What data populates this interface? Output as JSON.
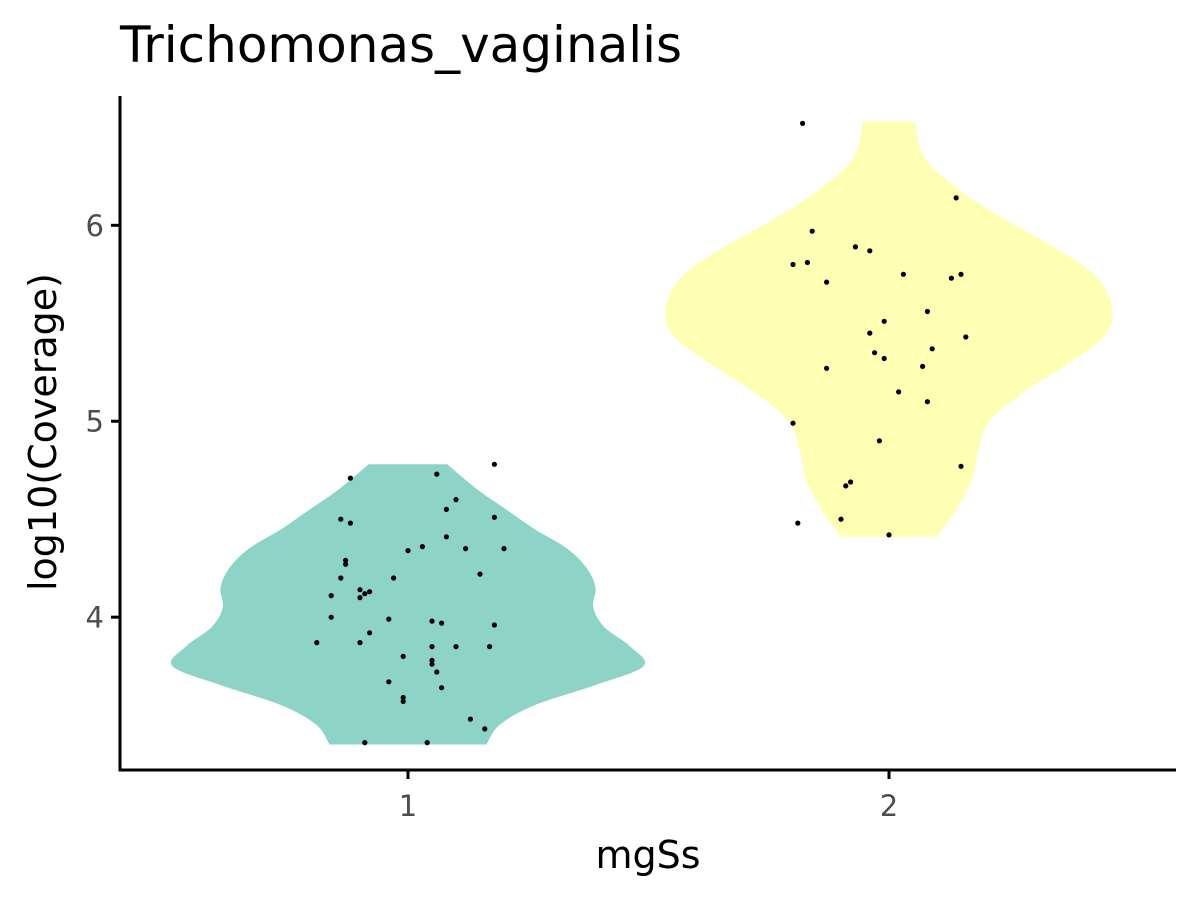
{
  "chart_data": {
    "type": "violin",
    "title": "Trichomonas_vaginalis",
    "xlabel": "mgSs",
    "ylabel": "log10(Coverage)",
    "categories": [
      "1",
      "2"
    ],
    "yticks": [
      "4",
      "5",
      "6"
    ],
    "ylim": [
      3.22,
      6.66
    ],
    "grid": false,
    "legend": "none",
    "series": [
      {
        "category": "1",
        "color": "#8dd3c7",
        "density": [
          [
            3.35,
            0.36
          ],
          [
            3.45,
            0.42
          ],
          [
            3.55,
            0.58
          ],
          [
            3.65,
            0.85
          ],
          [
            3.75,
            1.08
          ],
          [
            3.85,
            1.02
          ],
          [
            3.95,
            0.9
          ],
          [
            4.05,
            0.85
          ],
          [
            4.15,
            0.86
          ],
          [
            4.25,
            0.82
          ],
          [
            4.35,
            0.73
          ],
          [
            4.45,
            0.58
          ],
          [
            4.55,
            0.45
          ],
          [
            4.65,
            0.32
          ],
          [
            4.78,
            0.18
          ]
        ],
        "points": [
          [
            -0.12,
            4.71
          ],
          [
            0.06,
            4.73
          ],
          [
            0.18,
            4.78
          ],
          [
            0.1,
            4.6
          ],
          [
            0.08,
            4.55
          ],
          [
            -0.14,
            4.5
          ],
          [
            -0.12,
            4.48
          ],
          [
            0.18,
            4.51
          ],
          [
            0.08,
            4.41
          ],
          [
            0.12,
            4.35
          ],
          [
            0.2,
            4.35
          ],
          [
            0.03,
            4.36
          ],
          [
            0.0,
            4.34
          ],
          [
            -0.13,
            4.29
          ],
          [
            -0.13,
            4.27
          ],
          [
            0.15,
            4.22
          ],
          [
            -0.03,
            4.2
          ],
          [
            -0.14,
            4.2
          ],
          [
            -0.1,
            4.14
          ],
          [
            -0.09,
            4.12
          ],
          [
            -0.08,
            4.13
          ],
          [
            -0.16,
            4.11
          ],
          [
            -0.1,
            4.1
          ],
          [
            -0.04,
            3.99
          ],
          [
            -0.16,
            4.0
          ],
          [
            0.05,
            3.98
          ],
          [
            0.07,
            3.97
          ],
          [
            0.18,
            3.96
          ],
          [
            -0.08,
            3.92
          ],
          [
            -0.19,
            3.87
          ],
          [
            -0.1,
            3.87
          ],
          [
            0.05,
            3.85
          ],
          [
            0.1,
            3.85
          ],
          [
            0.17,
            3.85
          ],
          [
            -0.01,
            3.8
          ],
          [
            0.05,
            3.78
          ],
          [
            0.05,
            3.76
          ],
          [
            0.06,
            3.72
          ],
          [
            -0.04,
            3.67
          ],
          [
            0.07,
            3.64
          ],
          [
            -0.01,
            3.59
          ],
          [
            -0.01,
            3.57
          ],
          [
            0.13,
            3.48
          ],
          [
            0.16,
            3.43
          ],
          [
            -0.09,
            3.36
          ],
          [
            0.04,
            3.36
          ]
        ]
      },
      {
        "category": "2",
        "color": "#ffffb3",
        "density": [
          [
            4.41,
            0.22
          ],
          [
            4.55,
            0.31
          ],
          [
            4.7,
            0.38
          ],
          [
            4.85,
            0.41
          ],
          [
            5.0,
            0.46
          ],
          [
            5.15,
            0.62
          ],
          [
            5.3,
            0.83
          ],
          [
            5.45,
            1.0
          ],
          [
            5.6,
            1.02
          ],
          [
            5.75,
            0.94
          ],
          [
            5.9,
            0.74
          ],
          [
            6.05,
            0.5
          ],
          [
            6.2,
            0.3
          ],
          [
            6.35,
            0.16
          ],
          [
            6.53,
            0.12
          ]
        ],
        "points": [
          [
            -0.18,
            6.52
          ],
          [
            0.14,
            6.14
          ],
          [
            -0.16,
            5.97
          ],
          [
            -0.07,
            5.89
          ],
          [
            -0.04,
            5.87
          ],
          [
            -0.2,
            5.8
          ],
          [
            -0.17,
            5.81
          ],
          [
            -0.13,
            5.71
          ],
          [
            0.03,
            5.75
          ],
          [
            0.15,
            5.75
          ],
          [
            0.13,
            5.73
          ],
          [
            0.08,
            5.56
          ],
          [
            -0.01,
            5.51
          ],
          [
            0.16,
            5.43
          ],
          [
            -0.04,
            5.45
          ],
          [
            0.09,
            5.37
          ],
          [
            -0.03,
            5.35
          ],
          [
            -0.01,
            5.32
          ],
          [
            0.07,
            5.28
          ],
          [
            -0.13,
            5.27
          ],
          [
            0.02,
            5.15
          ],
          [
            0.08,
            5.1
          ],
          [
            -0.2,
            4.99
          ],
          [
            -0.02,
            4.9
          ],
          [
            0.15,
            4.77
          ],
          [
            -0.08,
            4.69
          ],
          [
            -0.09,
            4.67
          ],
          [
            -0.1,
            4.5
          ],
          [
            -0.19,
            4.48
          ],
          [
            0.0,
            4.42
          ]
        ]
      }
    ]
  }
}
